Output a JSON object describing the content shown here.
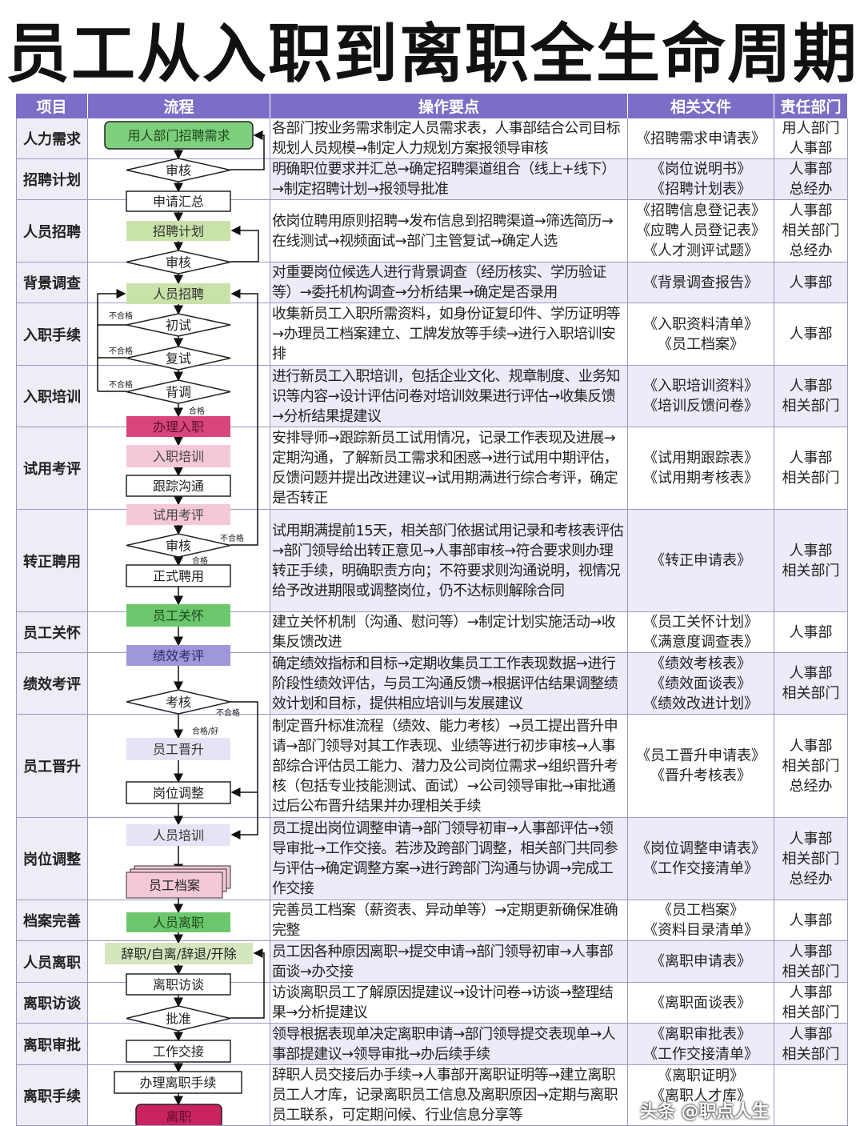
{
  "title": "员工从入职到离职全生命周期",
  "header": {
    "item": "项目",
    "flow": "流程",
    "ops": "操作要点",
    "docs": "相关文件",
    "dept": "责任部门"
  },
  "rows": [
    {
      "item": "人力需求",
      "ops": "各部门按业务需求制定人员需求表，人事部结合公司目标规划人员规模→制定人力规划方案报领导审核",
      "docs": [
        "《招聘需求申请表》"
      ],
      "dept": [
        "用人部门",
        "人事部"
      ]
    },
    {
      "item": "招聘计划",
      "ops": "明确职位要求并汇总→确定招聘渠道组合（线上+线下）→制定招聘计划→报领导批准",
      "docs": [
        "《岗位说明书》",
        "《招聘计划表》"
      ],
      "dept": [
        "人事部",
        "总经办"
      ]
    },
    {
      "item": "人员招聘",
      "ops": "依岗位聘用原则招聘→发布信息到招聘渠道→筛选简历→在线测试→视频面试→部门主管复试→确定人选",
      "docs": [
        "《招聘信息登记表》",
        "《应聘人员登记表》",
        "《人才测评试题》"
      ],
      "dept": [
        "人事部",
        "相关部门",
        "总经办"
      ]
    },
    {
      "item": "背景调查",
      "ops": "对重要岗位候选人进行背景调查（经历核实、学历验证等）→委托机构调查→分析结果→确定是否录用",
      "docs": [
        "《背景调查报告》"
      ],
      "dept": [
        "人事部"
      ]
    },
    {
      "item": "入职手续",
      "ops": "收集新员工入职所需资料，如身份证复印件、学历证明等→办理员工档案建立、工牌发放等手续→进行入职培训安排",
      "docs": [
        "《入职资料清单》",
        "《员工档案》"
      ],
      "dept": [
        "人事部"
      ]
    },
    {
      "item": "入职培训",
      "ops": "进行新员工入职培训，包括企业文化、规章制度、业务知识等内容→设计评估问卷对培训效果进行评估→收集反馈→分析结果提建议",
      "docs": [
        "《入职培训资料》",
        "《培训反馈问卷》"
      ],
      "dept": [
        "人事部",
        "相关部门"
      ]
    },
    {
      "item": "试用考评",
      "ops": "安排导师→跟踪新员工试用情况，记录工作表现及进展→定期沟通，了解新员工需求和困惑→进行试用中期评估，反馈问题并提出改进建议→试用期满进行综合考评，确定是否转正",
      "docs": [
        "《试用期跟踪表》",
        "《试用期考核表》"
      ],
      "dept": [
        "人事部",
        "相关部门"
      ]
    },
    {
      "item": "转正聘用",
      "ops": "试用期满提前15天，相关部门依据试用记录和考核表评估→部门领导给出转正意见→人事部审核→符合要求则办理转正手续，明确职责方向；不符要求则沟通说明，视情况给予改进期限或调整岗位，仍不达标则解除合同",
      "docs": [
        "《转正申请表》"
      ],
      "dept": [
        "人事部",
        "相关部门"
      ]
    },
    {
      "item": "员工关怀",
      "ops": "建立关怀机制（沟通、慰问等）→制定计划实施活动→收集反馈改进",
      "docs": [
        "《员工关怀计划》",
        "《满意度调查表》"
      ],
      "dept": [
        "人事部"
      ]
    },
    {
      "item": "绩效考评",
      "ops": "确定绩效指标和目标→定期收集员工工作表现数据→进行阶段性绩效评估，与员工沟通反馈→根据评估结果调整绩效计划和目标，提供相应培训与发展建议",
      "docs": [
        "《绩效考核表》",
        "《绩效面谈表》",
        "《绩效改进计划》"
      ],
      "dept": [
        "人事部",
        "相关部门"
      ]
    },
    {
      "item": "员工晋升",
      "ops": "制定晋升标准流程（绩效、能力考核）→员工提出晋升申请→部门领导对其工作表现、业绩等进行初步审核→人事部综合评估员工能力、潜力及公司岗位需求→组织晋升考核（包括专业技能测试、面试）→公司领导审批→审批通过后公布晋升结果并办理相关手续",
      "docs": [
        "《员工晋升申请表》",
        "《晋升考核表》"
      ],
      "dept": [
        "人事部",
        "相关部门",
        "总经办"
      ]
    },
    {
      "item": "岗位调整",
      "ops": "员工提出岗位调整申请→部门领导初审→人事部评估→领导审批→工作交接。若涉及跨部门调整，相关部门共同参与评估→确定调整方案→进行跨部门沟通与协调→完成工作交接",
      "docs": [
        "《岗位调整申请表》",
        "《工作交接清单》"
      ],
      "dept": [
        "人事部",
        "相关部门",
        "总经办"
      ]
    },
    {
      "item": "档案完善",
      "ops": "完善员工档案（薪资表、异动单等）→定期更新确保准确完整",
      "docs": [
        "《员工档案》",
        "《资料目录清单》"
      ],
      "dept": [
        "人事部"
      ]
    },
    {
      "item": "人员离职",
      "ops": "员工因各种原因离职→提交申请→部门领导初审→人事部面谈→办交接",
      "docs": [
        "《离职申请表》"
      ],
      "dept": [
        "人事部",
        "相关部门"
      ]
    },
    {
      "item": "离职访谈",
      "ops": "访谈离职员工了解原因提建议→设计问卷→访谈→整理结果→分析提建议",
      "docs": [
        "《离职面谈表》"
      ],
      "dept": [
        "人事部",
        "相关部门"
      ]
    },
    {
      "item": "离职审批",
      "ops": "领导根据表现单决定离职申请→部门领导提交表现单→人事部提建议→领导审批→办后续手续",
      "docs": [
        "《离职审批表》",
        "《工作交接清单》"
      ],
      "dept": [
        "人事部",
        "相关部门"
      ]
    },
    {
      "item": "离职手续",
      "ops": "辞职人员交接后办手续→人事部开离职证明等→建立离职员工人才库，记录离职员工信息及离职原因→定期与离职员工联系，可定期问候、行业信息分享等",
      "docs": [
        "《离职证明》",
        "《离职人才库》"
      ],
      "dept": []
    }
  ],
  "flow": {
    "nodes": [
      "用人部门招聘需求",
      "审核",
      "申请汇总",
      "招聘计划",
      "审核",
      "人员招聘",
      "初试",
      "复试",
      "背调",
      "办理入职",
      "入职培训",
      "跟踪沟通",
      "试用考评",
      "审核",
      "正式聘用",
      "员工关怀",
      "绩效考评",
      "考核",
      "员工晋升",
      "岗位调整",
      "人员培训",
      "员工档案",
      "人员离职",
      "辞职/自离/辞退/开除",
      "离职访谈",
      "批准",
      "工作交接",
      "办理离职手续",
      "离职"
    ],
    "fail_label": "不合格",
    "pass_label": "合格",
    "pass_good_label": "合格/好"
  },
  "watermark": "头条 @职点人生"
}
